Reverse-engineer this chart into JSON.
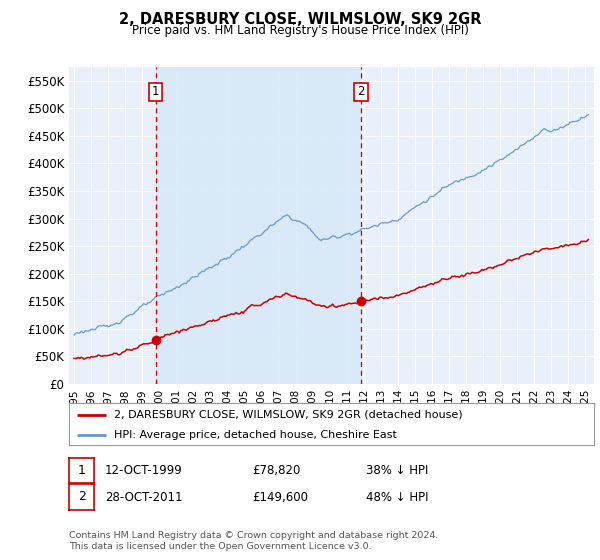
{
  "title": "2, DARESBURY CLOSE, WILMSLOW, SK9 2GR",
  "subtitle": "Price paid vs. HM Land Registry's House Price Index (HPI)",
  "ylabel_ticks": [
    "£0",
    "£50K",
    "£100K",
    "£150K",
    "£200K",
    "£250K",
    "£300K",
    "£350K",
    "£400K",
    "£450K",
    "£500K",
    "£550K"
  ],
  "ytick_values": [
    0,
    50000,
    100000,
    150000,
    200000,
    250000,
    300000,
    350000,
    400000,
    450000,
    500000,
    550000
  ],
  "ylim": [
    0,
    575000
  ],
  "xlim_start": 1994.7,
  "xlim_end": 2025.5,
  "sale1_date": 1999.79,
  "sale1_price": 78820,
  "sale1_label": "1",
  "sale2_date": 2011.82,
  "sale2_price": 149600,
  "sale2_label": "2",
  "legend_line1": "2, DARESBURY CLOSE, WILMSLOW, SK9 2GR (detached house)",
  "legend_line2": "HPI: Average price, detached house, Cheshire East",
  "footer_line1": "Contains HM Land Registry data © Crown copyright and database right 2024.",
  "footer_line2": "This data is licensed under the Open Government Licence v3.0.",
  "table_row1_num": "1",
  "table_row1_date": "12-OCT-1999",
  "table_row1_price": "£78,820",
  "table_row1_hpi": "38% ↓ HPI",
  "table_row2_num": "2",
  "table_row2_date": "28-OCT-2011",
  "table_row2_price": "£149,600",
  "table_row2_hpi": "48% ↓ HPI",
  "line_color_red": "#cc0000",
  "line_color_blue": "#6699cc",
  "shade_color": "#d8e8f8",
  "vline_color": "#cc0000",
  "plot_bg": "#e8f0fc",
  "grid_color": "#ffffff",
  "outer_grid_color": "#cccccc"
}
